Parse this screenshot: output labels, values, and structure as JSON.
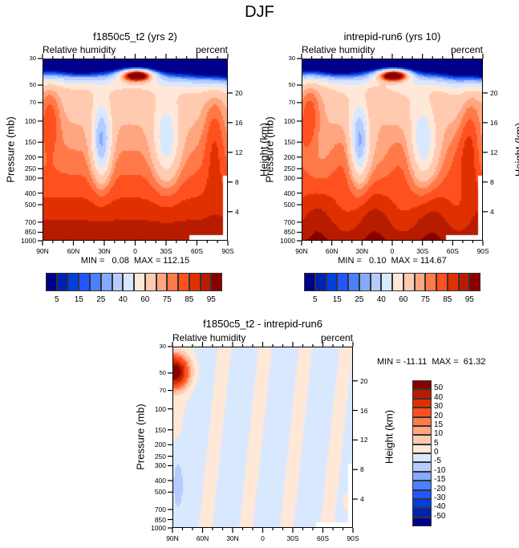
{
  "title": "DJF",
  "chart_data": [
    {
      "type": "heatmap",
      "title": "f1850c5_t2 (yrs 2)",
      "left_label": "Relative humidity",
      "right_label": "percent",
      "xlabel": "",
      "ylabel": "Pressure (mb)",
      "y2label": "Height (km)",
      "x_ticks": [
        "90N",
        "60N",
        "30N",
        "0",
        "30S",
        "60S",
        "90S"
      ],
      "y_ticks": [
        "30",
        "50",
        "70",
        "100",
        "150",
        "200",
        "250",
        "300",
        "400",
        "500",
        "700",
        "850",
        "1000"
      ],
      "y2_ticks": [
        "20",
        "16",
        "12",
        "8",
        "4"
      ],
      "min_max_text": "MIN =   0.08  MAX = 112.15",
      "min": 0.08,
      "max": 112.15,
      "levels": [
        5,
        10,
        15,
        20,
        25,
        30,
        40,
        50,
        60,
        70,
        75,
        80,
        85,
        90,
        95
      ],
      "colorbar_labels": [
        "5",
        "15",
        "25",
        "40",
        "60",
        "75",
        "85",
        "95"
      ],
      "colorbar_orientation": "horizontal"
    },
    {
      "type": "heatmap",
      "title": "intrepid-run6 (yrs 10)",
      "left_label": "Relative humidity",
      "right_label": "percent",
      "xlabel": "",
      "ylabel": "Pressure (mb)",
      "y2label": "Height (km)",
      "x_ticks": [
        "90N",
        "60N",
        "30N",
        "0",
        "30S",
        "60S",
        "90S"
      ],
      "y_ticks": [
        "30",
        "50",
        "70",
        "100",
        "150",
        "200",
        "250",
        "300",
        "400",
        "500",
        "700",
        "850",
        "1000"
      ],
      "y2_ticks": [
        "20",
        "16",
        "12",
        "8",
        "4"
      ],
      "min_max_text": "MIN =   0.10  MAX = 114.67",
      "min": 0.1,
      "max": 114.67,
      "levels": [
        5,
        10,
        15,
        20,
        25,
        30,
        40,
        50,
        60,
        70,
        75,
        80,
        85,
        90,
        95
      ],
      "colorbar_labels": [
        "5",
        "15",
        "25",
        "40",
        "60",
        "75",
        "85",
        "95"
      ],
      "colorbar_orientation": "horizontal"
    },
    {
      "type": "heatmap",
      "title": "f1850c5_t2 - intrepid-run6",
      "left_label": "Relative humidity",
      "right_label": "percent",
      "xlabel": "",
      "ylabel": "Pressure (mb)",
      "y2label": "Height (km)",
      "x_ticks": [
        "90N",
        "60N",
        "30N",
        "0",
        "30S",
        "60S",
        "90S"
      ],
      "y_ticks": [
        "30",
        "50",
        "70",
        "100",
        "150",
        "200",
        "250",
        "300",
        "400",
        "500",
        "700",
        "850",
        "1000"
      ],
      "y2_ticks": [
        "20",
        "16",
        "12",
        "8",
        "4"
      ],
      "min_max_text": "MIN = -11.11  MAX =  61.32",
      "min": -11.11,
      "max": 61.32,
      "levels": [
        -50,
        -40,
        -30,
        -20,
        -15,
        -10,
        -5,
        0,
        5,
        10,
        15,
        20,
        30,
        40,
        50
      ],
      "colorbar_labels": [
        "50",
        "40",
        "30",
        "20",
        "15",
        "10",
        "5",
        "0",
        "-5",
        "-10",
        "-15",
        "-20",
        "-30",
        "-40",
        "-50"
      ],
      "colorbar_orientation": "vertical"
    }
  ],
  "palette": [
    "#00008a",
    "#0022b0",
    "#0040e0",
    "#2255ff",
    "#4a80ff",
    "#86aaff",
    "#b6ccff",
    "#d8e8ff",
    "#ffe8d8",
    "#ffcab0",
    "#ffa680",
    "#ff7a48",
    "#ff5020",
    "#e03000",
    "#b81c00",
    "#8a0000"
  ]
}
